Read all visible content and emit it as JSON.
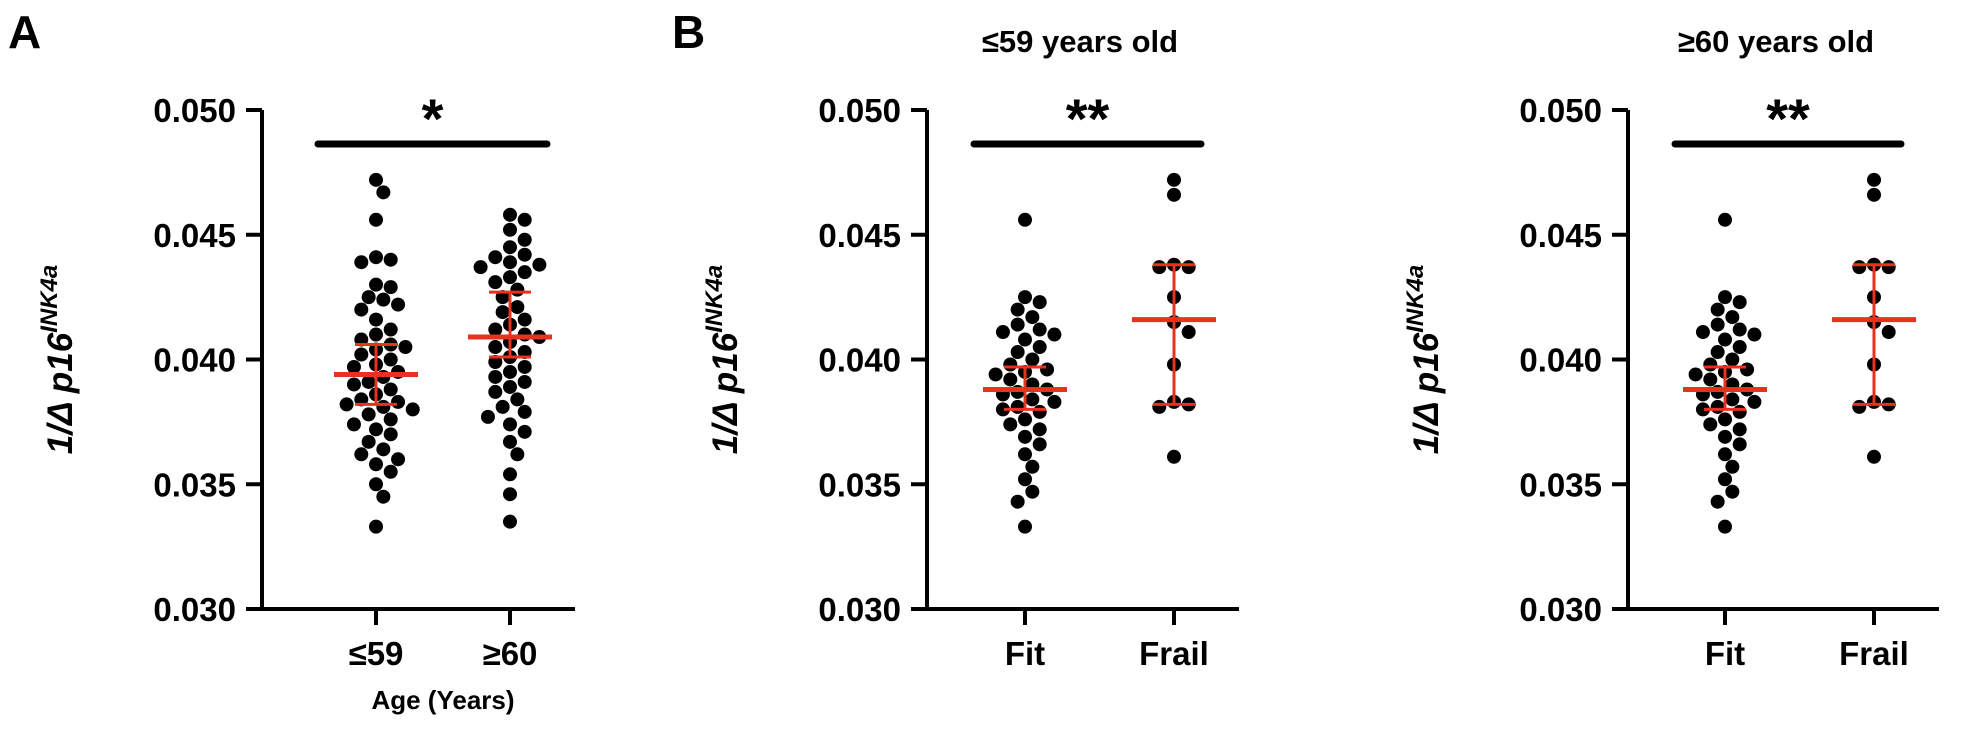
{
  "panel_letters": [
    "A",
    "B"
  ],
  "colors": {
    "points": "#000000",
    "mean_sd": "#e8321e",
    "axes": "#000000"
  },
  "chart_data": [
    {
      "type": "scatter",
      "panel": "A",
      "title": "",
      "ylabel": "1/Δ p16",
      "ylabel_superscript": "INK4a",
      "xlabel": "Age (Years)",
      "ylim": [
        0.03,
        0.05
      ],
      "yticks": [
        "0.050",
        "0.045",
        "0.040",
        "0.035",
        "0.030"
      ],
      "significance": "*",
      "categories": [
        "≤59",
        "≥60"
      ],
      "groups": [
        {
          "label": "≤59",
          "mean": 0.0394,
          "sd_upper": 0.0406,
          "sd_lower": 0.0382,
          "values": [
            0.0472,
            0.0467,
            0.0456,
            0.0441,
            0.044,
            0.0439,
            0.043,
            0.0429,
            0.0425,
            0.0424,
            0.0422,
            0.042,
            0.0416,
            0.0412,
            0.041,
            0.0408,
            0.0406,
            0.0405,
            0.0404,
            0.0402,
            0.04,
            0.0398,
            0.0397,
            0.0395,
            0.0393,
            0.0391,
            0.039,
            0.0388,
            0.0386,
            0.0384,
            0.0383,
            0.0382,
            0.0381,
            0.038,
            0.0378,
            0.0376,
            0.0374,
            0.0372,
            0.037,
            0.0367,
            0.0364,
            0.0362,
            0.036,
            0.0358,
            0.0355,
            0.035,
            0.0345,
            0.0333
          ]
        },
        {
          "label": "≥60",
          "mean": 0.0409,
          "sd_upper": 0.0427,
          "sd_lower": 0.0401,
          "values": [
            0.0458,
            0.0456,
            0.0452,
            0.0448,
            0.0445,
            0.0442,
            0.0441,
            0.0439,
            0.0438,
            0.0437,
            0.0435,
            0.0433,
            0.0431,
            0.0428,
            0.0425,
            0.0421,
            0.0419,
            0.0416,
            0.0414,
            0.0412,
            0.041,
            0.0409,
            0.0407,
            0.0405,
            0.0403,
            0.0401,
            0.0399,
            0.0397,
            0.0395,
            0.0393,
            0.0391,
            0.0389,
            0.0387,
            0.0384,
            0.0381,
            0.0379,
            0.0377,
            0.0374,
            0.0371,
            0.0367,
            0.0362,
            0.0354,
            0.0346,
            0.0335
          ]
        }
      ]
    },
    {
      "type": "scatter",
      "panel": "B",
      "title": "≤59 years old",
      "ylabel": "1/Δ p16",
      "ylabel_superscript": "INK4a",
      "xlabel": "",
      "ylim": [
        0.03,
        0.05
      ],
      "yticks": [
        "0.050",
        "0.045",
        "0.040",
        "0.035",
        "0.030"
      ],
      "significance": "**",
      "categories": [
        "Fit",
        "Frail"
      ],
      "groups": [
        {
          "label": "Fit",
          "mean": 0.0388,
          "sd_upper": 0.0397,
          "sd_lower": 0.038,
          "values": [
            0.0456,
            0.0425,
            0.0423,
            0.042,
            0.0417,
            0.0414,
            0.0412,
            0.0411,
            0.041,
            0.0408,
            0.0405,
            0.0403,
            0.04,
            0.0398,
            0.0396,
            0.0395,
            0.0394,
            0.0392,
            0.039,
            0.0388,
            0.0387,
            0.0386,
            0.0384,
            0.0383,
            0.0381,
            0.038,
            0.0379,
            0.0376,
            0.0374,
            0.0372,
            0.0369,
            0.0366,
            0.0362,
            0.0357,
            0.0352,
            0.0347,
            0.0343,
            0.0333
          ]
        },
        {
          "label": "Frail",
          "mean": 0.0416,
          "sd_upper": 0.0438,
          "sd_lower": 0.0382,
          "values": [
            0.0472,
            0.0466,
            0.0438,
            0.0437,
            0.0437,
            0.0425,
            0.0415,
            0.0411,
            0.0398,
            0.0383,
            0.0382,
            0.0381,
            0.0361
          ]
        }
      ]
    },
    {
      "type": "scatter",
      "panel": "B",
      "title": "≥60 years old",
      "ylabel": "1/Δ p16",
      "ylabel_superscript": "INK4a",
      "xlabel": "",
      "ylim": [
        0.03,
        0.05
      ],
      "yticks": [
        "0.050",
        "0.045",
        "0.040",
        "0.035",
        "0.030"
      ],
      "significance": "**",
      "categories": [
        "Fit",
        "Frail"
      ],
      "groups": [
        {
          "label": "Fit",
          "mean": 0.0388,
          "sd_upper": 0.0397,
          "sd_lower": 0.038,
          "values": [
            0.0456,
            0.0425,
            0.0423,
            0.042,
            0.0417,
            0.0414,
            0.0412,
            0.0411,
            0.041,
            0.0408,
            0.0405,
            0.0403,
            0.04,
            0.0398,
            0.0396,
            0.0395,
            0.0394,
            0.0392,
            0.039,
            0.0388,
            0.0387,
            0.0386,
            0.0384,
            0.0383,
            0.0381,
            0.038,
            0.0379,
            0.0376,
            0.0374,
            0.0372,
            0.0369,
            0.0366,
            0.0362,
            0.0357,
            0.0352,
            0.0347,
            0.0343,
            0.0333
          ]
        },
        {
          "label": "Frail",
          "mean": 0.0416,
          "sd_upper": 0.0438,
          "sd_lower": 0.0382,
          "values": [
            0.0472,
            0.0466,
            0.0438,
            0.0437,
            0.0437,
            0.0425,
            0.0415,
            0.0411,
            0.0398,
            0.0383,
            0.0382,
            0.0381,
            0.0361
          ]
        }
      ]
    }
  ]
}
